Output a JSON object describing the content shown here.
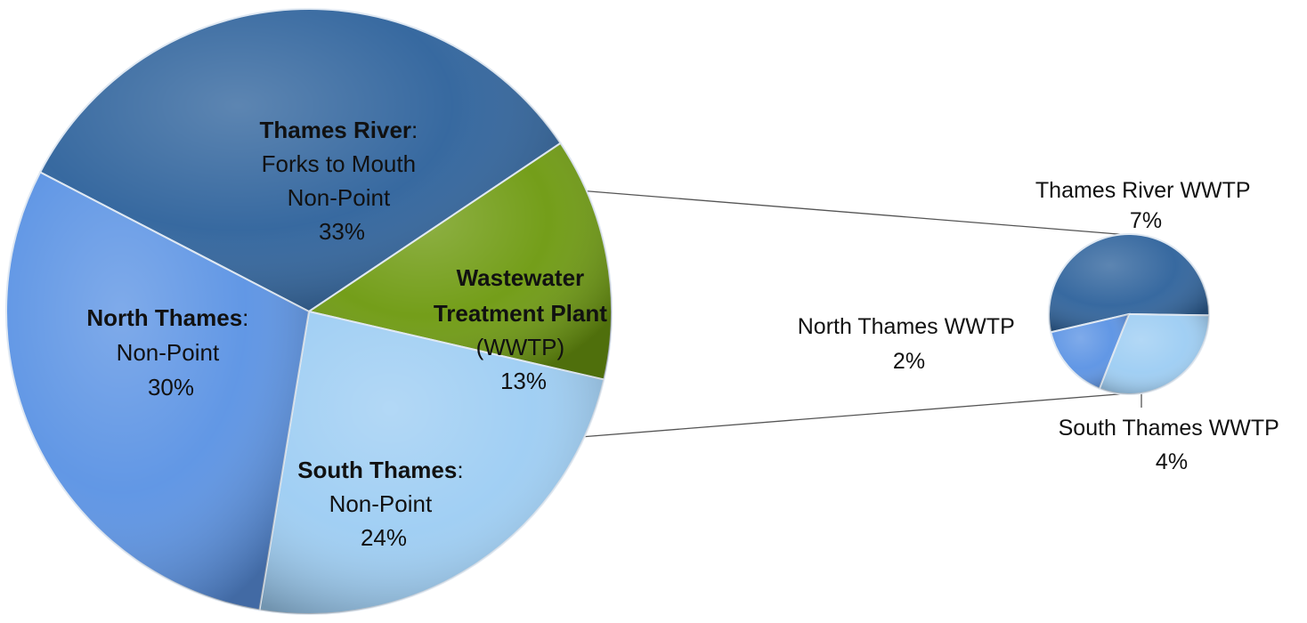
{
  "chart_data": [
    {
      "type": "pie",
      "slices": [
        {
          "key": "thames",
          "value": 33,
          "color": "#2f639c",
          "label": {
            "bold": "Thames River",
            "rest": ":",
            "lines": [
              "Forks to Mouth",
              "Non-Point"
            ],
            "pct": "33%"
          }
        },
        {
          "key": "wwtp",
          "value": 13,
          "color": "#6e9a10",
          "label": {
            "bold_lines": [
              "Wastewater",
              "Treatment Plant"
            ],
            "lines": [
              "(WWTP)"
            ],
            "pct": "13%"
          }
        },
        {
          "key": "south",
          "value": 24,
          "color": "#9dcdf3",
          "label": {
            "bold": "South Thames",
            "rest": ":",
            "lines": [
              "Non-Point"
            ],
            "pct": "24%"
          }
        },
        {
          "key": "north",
          "value": 30,
          "color": "#5b93e4",
          "label": {
            "bold": "North Thames",
            "rest": ":",
            "lines": [
              "Non-Point"
            ],
            "pct": "30%"
          }
        }
      ]
    },
    {
      "type": "pie",
      "slices": [
        {
          "key": "thames_wwtp",
          "value": 7,
          "color": "#2f639c",
          "name": "Thames River WWTP",
          "pct": "7%"
        },
        {
          "key": "south_wwtp",
          "value": 4,
          "color": "#9dcdf3",
          "name": "South Thames WWTP",
          "pct": "4%"
        },
        {
          "key": "north_wwtp",
          "value": 2,
          "color": "#5b93e4",
          "name": "North Thames WWTP",
          "pct": "2%"
        }
      ]
    }
  ]
}
